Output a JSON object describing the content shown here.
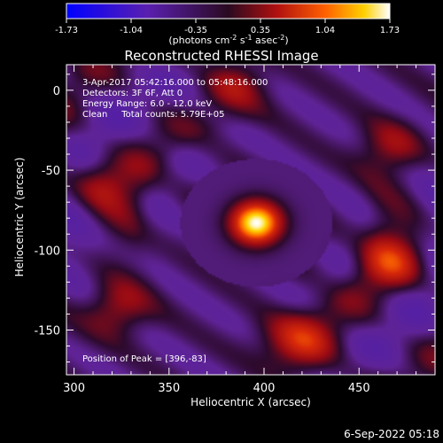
{
  "chart_data": {
    "type": "heatmap",
    "title": "Reconstructed RHESSI Image",
    "xlabel": "Heliocentric X (arcsec)",
    "ylabel": "Heliocentric Y (arcsec)",
    "xlim": [
      296,
      490
    ],
    "ylim": [
      -178,
      16
    ],
    "xticks": [
      300,
      350,
      400,
      450
    ],
    "yticks": [
      0,
      -50,
      -100,
      -150
    ],
    "colorbar": {
      "range": [
        -1.73,
        1.73
      ],
      "ticks": [
        "-1.73",
        "-1.04",
        "-0.35",
        "0.35",
        "1.04",
        "1.73"
      ],
      "unit_text": "(photons cm",
      "unit_sup1": "-2",
      "unit_mid1": " s",
      "unit_sup2": "-1",
      "unit_mid2": " asec",
      "unit_sup3": "-2",
      "unit_end": ")"
    },
    "annotations": [
      " 3-Apr-2017 05:42:16.000 to 05:48:16.000",
      "Detectors: 3F 6F, Att 0",
      "Energy Range: 6.0 - 12.0 keV",
      "Clean     Total counts: 5.79E+05"
    ],
    "peak_label": "Position of Peak = [396,-83]",
    "peak": {
      "x": 396,
      "y": -83,
      "value": 1.73
    },
    "sources": [
      {
        "x": 396,
        "y": -83,
        "sigma": 9,
        "value": 1.73
      },
      {
        "x": 420,
        "y": -160,
        "sigma": 14,
        "value": 0.75
      },
      {
        "x": 322,
        "y": -137,
        "sigma": 12,
        "value": 0.55
      },
      {
        "x": 312,
        "y": -58,
        "sigma": 12,
        "value": 0.55
      },
      {
        "x": 470,
        "y": -108,
        "sigma": 13,
        "value": 0.65
      },
      {
        "x": 468,
        "y": -35,
        "sigma": 12,
        "value": 0.45
      },
      {
        "x": 385,
        "y": 5,
        "sigma": 12,
        "value": 0.5
      }
    ]
  },
  "footer": {
    "timestamp": "6-Sep-2022 05:18"
  },
  "colors": {
    "background": "#000000",
    "text": "#ffffff"
  }
}
